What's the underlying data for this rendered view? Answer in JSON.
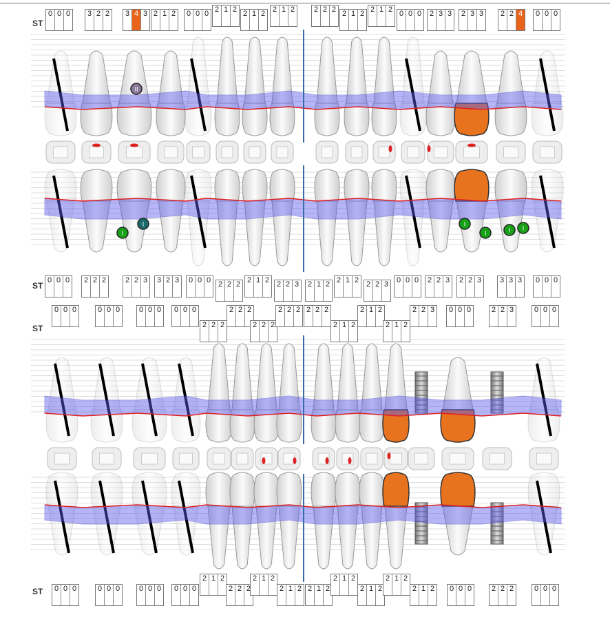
{
  "label": "ST",
  "colors": {
    "restoration": "#e8731f",
    "gingiva": "#e02020",
    "pocket": "#5c5cf0",
    "midline": "#3a6aa8",
    "missing": "#000000"
  },
  "rows": [
    {
      "name": "chart1-upper",
      "values": [
        [
          "0",
          "0",
          "0"
        ],
        [
          "3",
          "2",
          "2"
        ],
        [
          "3",
          "4",
          "3"
        ],
        [
          "2",
          "1",
          "2"
        ],
        [
          "0",
          "0",
          "0"
        ],
        [
          "2",
          "1",
          "2"
        ],
        [
          "2",
          "1",
          "2"
        ],
        [
          "2",
          "1",
          "2"
        ],
        [
          "2",
          "2",
          "2"
        ],
        [
          "2",
          "1",
          "2"
        ],
        [
          "2",
          "1",
          "2"
        ],
        [
          "0",
          "0",
          "0"
        ],
        [
          "2",
          "3",
          "3"
        ],
        [
          "2",
          "3",
          "3"
        ],
        [
          "2",
          "2",
          "4"
        ],
        [
          "0",
          "0",
          "0"
        ]
      ],
      "highlighted": [
        [
          2,
          1
        ],
        [
          14,
          2
        ]
      ]
    },
    {
      "name": "chart1-lower",
      "values": [
        [
          "0",
          "0",
          "0"
        ],
        [
          "2",
          "2",
          "2"
        ],
        [
          "2",
          "2",
          "3"
        ],
        [
          "3",
          "2",
          "3"
        ],
        [
          "0",
          "0",
          "0"
        ],
        [
          "2",
          "2",
          "2"
        ],
        [
          "2",
          "1",
          "2"
        ],
        [
          "2",
          "2",
          "3"
        ],
        [
          "2",
          "1",
          "2"
        ],
        [
          "2",
          "1",
          "2"
        ],
        [
          "2",
          "2",
          "3"
        ],
        [
          "0",
          "0",
          "0"
        ],
        [
          "2",
          "2",
          "3"
        ],
        [
          "2",
          "2",
          "3"
        ],
        [
          "3",
          "3",
          "3"
        ],
        [
          "0",
          "0",
          "0"
        ]
      ],
      "highlighted": []
    },
    {
      "name": "chart2-upper",
      "values": [
        [
          "0",
          "0",
          "0"
        ],
        [
          "0",
          "0",
          "0"
        ],
        [
          "0",
          "0",
          "0"
        ],
        [
          "0",
          "0",
          "0"
        ],
        [
          "2",
          "2",
          "2"
        ],
        [
          "2",
          "2",
          "2"
        ],
        [
          "2",
          "2",
          "2"
        ],
        [
          "2",
          "2",
          "2"
        ],
        [
          "2",
          "2",
          "2"
        ],
        [
          "2",
          "1",
          "2"
        ],
        [
          "2",
          "1",
          "2"
        ],
        [
          "2",
          "1",
          "2"
        ],
        [
          "2",
          "2",
          "3"
        ],
        [
          "0",
          "0",
          "0"
        ],
        [
          "2",
          "2",
          "3"
        ],
        [
          "0",
          "0",
          "0"
        ]
      ],
      "highlighted": []
    },
    {
      "name": "chart2-lower",
      "values": [
        [
          "0",
          "0",
          "0"
        ],
        [
          "0",
          "0",
          "0"
        ],
        [
          "0",
          "0",
          "0"
        ],
        [
          "0",
          "0",
          "0"
        ],
        [
          "2",
          "1",
          "2"
        ],
        [
          "2",
          "2",
          "2"
        ],
        [
          "2",
          "1",
          "2"
        ],
        [
          "2",
          "1",
          "2"
        ],
        [
          "2",
          "1",
          "2"
        ],
        [
          "2",
          "1",
          "2"
        ],
        [
          "2",
          "1",
          "2"
        ],
        [
          "2",
          "1",
          "2"
        ],
        [
          "2",
          "1",
          "2"
        ],
        [
          "0",
          "0",
          "0"
        ],
        [
          "2",
          "2",
          "2"
        ],
        [
          "0",
          "0",
          "0"
        ]
      ],
      "highlighted": []
    }
  ],
  "furcation_marks": {
    "chart1-upper": [
      "II"
    ],
    "chart1-lower": [
      "I",
      "I",
      "I",
      "I",
      "I",
      "I"
    ]
  },
  "teeth": {
    "chart1-upper": {
      "missing": [
        0,
        4,
        11,
        15
      ],
      "crown": [
        13
      ]
    },
    "chart1-lower": {
      "missing": [
        0,
        4,
        11,
        15
      ],
      "crown": [
        13
      ]
    },
    "chart2-upper": {
      "missing": [
        0,
        1,
        2,
        3,
        15
      ],
      "crown": [
        11,
        13
      ],
      "implant": [
        12,
        14
      ]
    },
    "chart2-lower": {
      "missing": [
        0,
        1,
        2,
        3,
        15
      ],
      "crown": [
        11,
        13
      ],
      "implant": [
        12,
        14
      ]
    }
  }
}
